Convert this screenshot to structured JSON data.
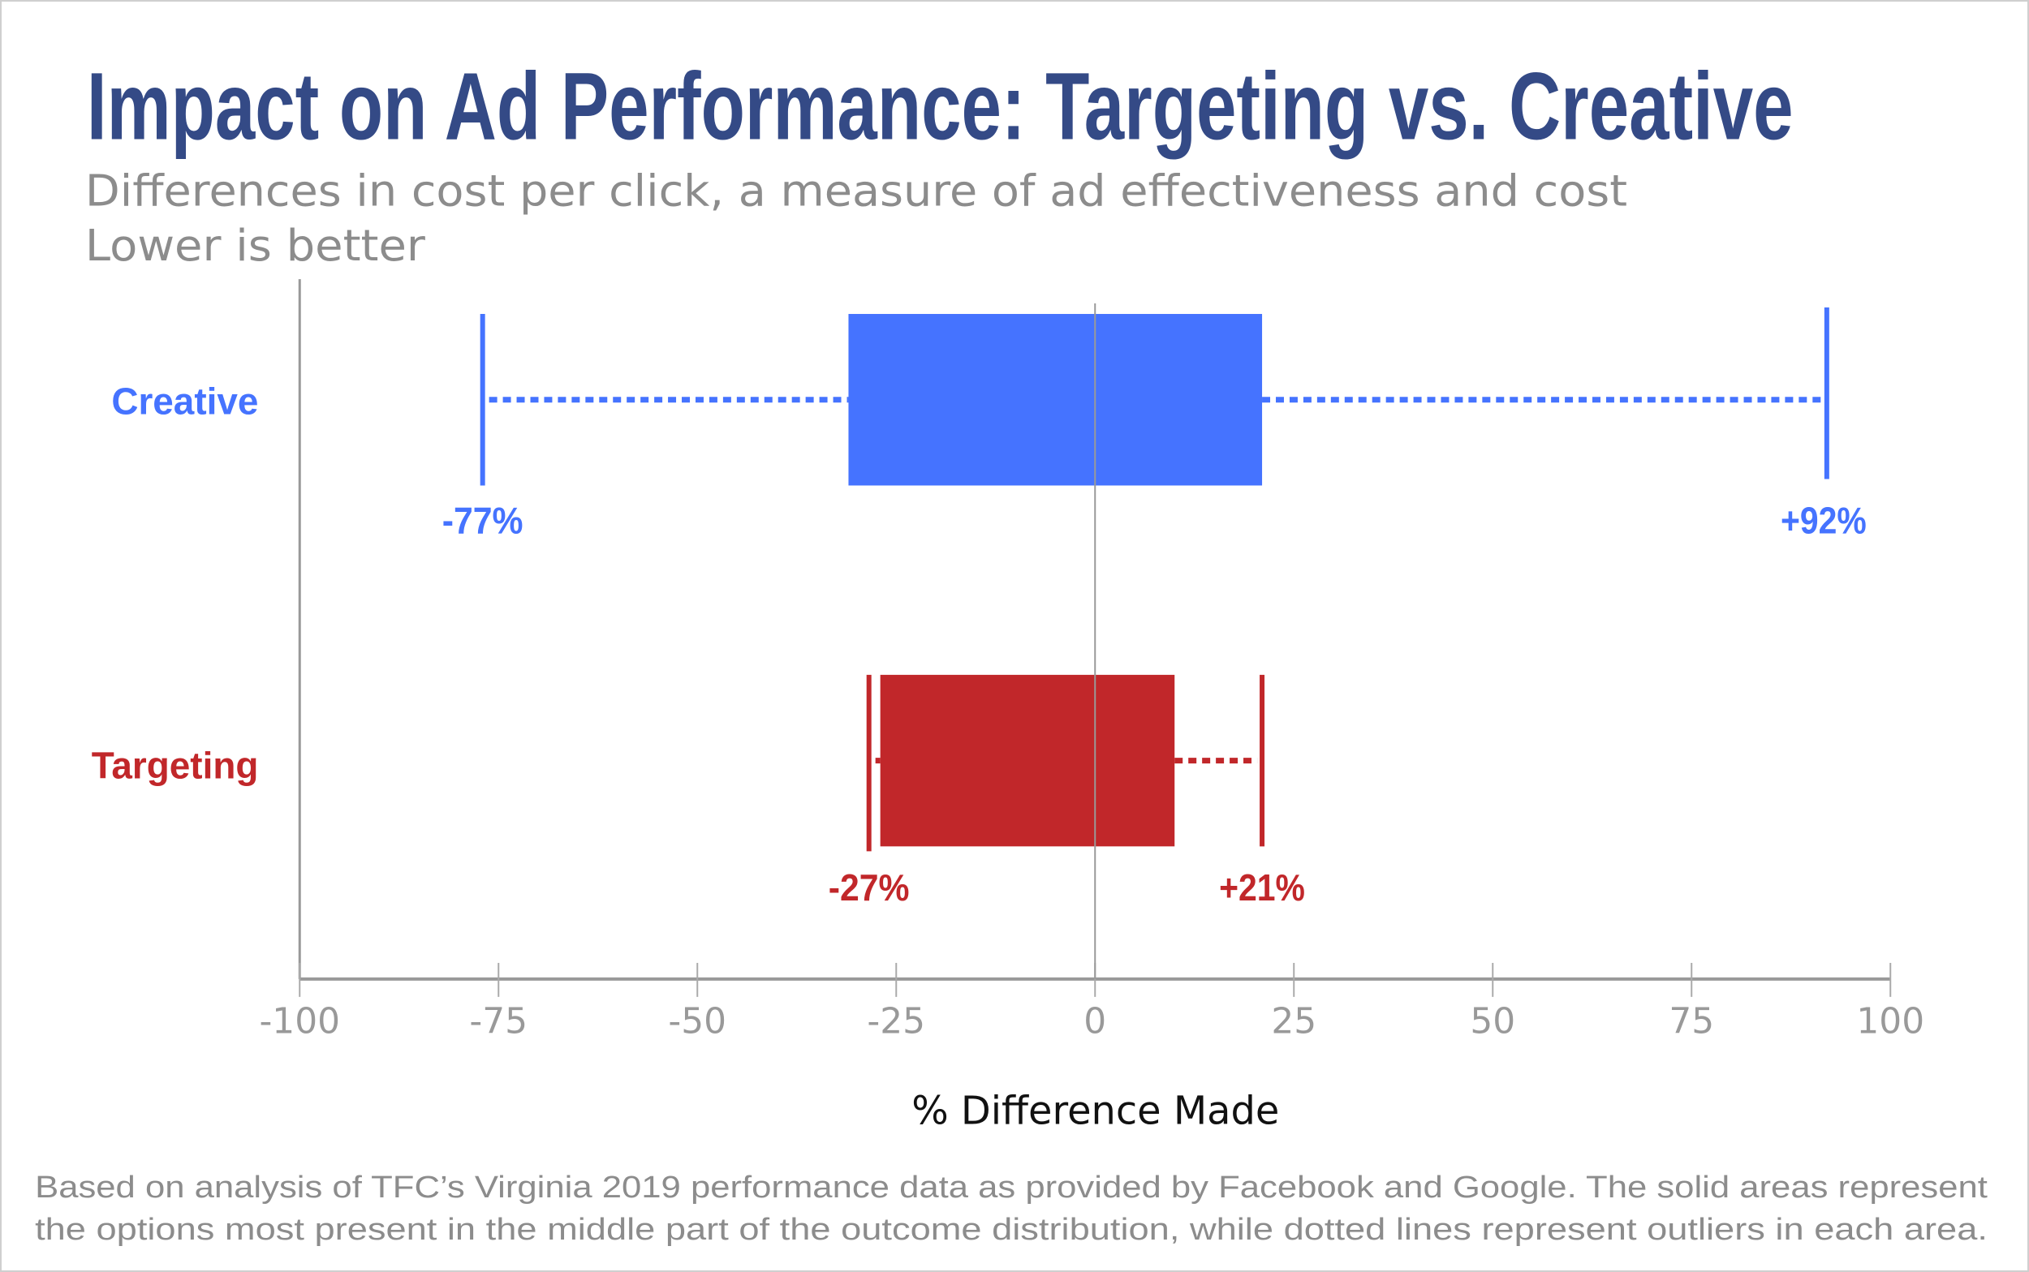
{
  "chart_data": {
    "type": "boxplot",
    "title": "Impact on Ad Performance: Targeting vs. Creative",
    "subtitle": [
      "Differences in cost per click, a measure of ad effectiveness and cost",
      "Lower is better"
    ],
    "xlabel": "% Difference Made",
    "xlim": [
      -100,
      100
    ],
    "ticks": [
      "-100",
      "-75",
      "-50",
      "-25",
      "0",
      "25",
      "50",
      "75",
      "100"
    ],
    "tick_values": [
      -100,
      -75,
      -50,
      -25,
      0,
      25,
      50,
      75,
      100
    ],
    "grid": false,
    "series": [
      {
        "name": "Creative",
        "color": "#4573ff",
        "box_low": -31,
        "box_high": 21,
        "whisker_low": -77,
        "whisker_high": 92,
        "low_label": "-77%",
        "high_label": "+92%"
      },
      {
        "name": "Targeting",
        "color": "#c1272a",
        "box_low": -27,
        "box_high": 10,
        "whisker_low": -27,
        "whisker_high": 21,
        "low_label": "-27%",
        "high_label": "+21%"
      }
    ],
    "footnote": [
      "Based on analysis of TFC’s Virginia 2019 performance data as provided by Facebook and Google. The solid areas represent",
      "the options most present in the middle part of the outcome distribution,  while dotted lines represent outliers in each area."
    ]
  }
}
